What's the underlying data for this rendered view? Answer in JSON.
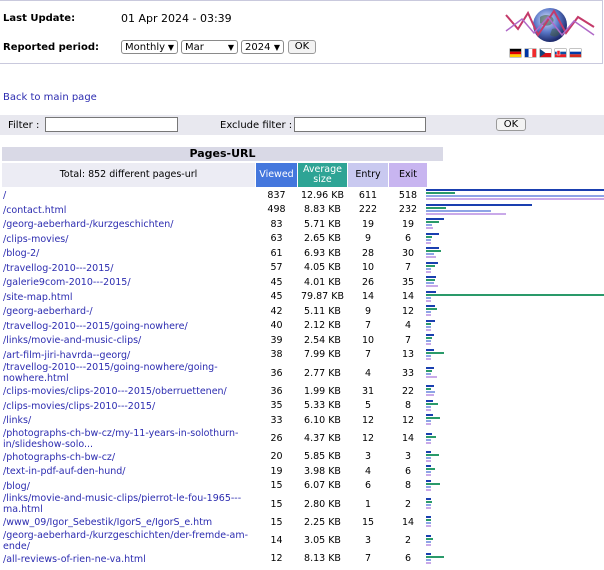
{
  "header": {
    "last_update_label": "Last Update:",
    "last_update_value": "01 Apr 2024 - 03:39",
    "reported_label": "Reported period:",
    "period_type": "Monthly",
    "month": "Mar",
    "year": "2024",
    "ok": "OK",
    "flags": [
      "de",
      "fr",
      "cz",
      "sk",
      "ru"
    ]
  },
  "nav": {
    "back": "Back to main page"
  },
  "filter": {
    "filter_label": "Filter :",
    "exclude_label": "Exclude filter :",
    "ok": "OK"
  },
  "table": {
    "title": "Pages-URL",
    "total_label": "Total: 852 different pages-url",
    "col_viewed": "Viewed",
    "col_size": "Average size",
    "col_entry": "Entry",
    "col_exit": "Exit",
    "colors": {
      "viewed": "#4477dd",
      "size": "#2ea495",
      "entry": "#c9c9f0",
      "exit": "#c8b5f0"
    },
    "max": {
      "viewed": 837,
      "size_kb": 79.87,
      "entry": 611,
      "exit": 518
    },
    "rows": [
      {
        "url": "/",
        "viewed": "837",
        "size": "12.96 KB",
        "size_kb": 12.96,
        "entry": "611",
        "exit": "518"
      },
      {
        "url": "/contact.html",
        "viewed": "498",
        "size": "8.83 KB",
        "size_kb": 8.83,
        "entry": "222",
        "exit": "232"
      },
      {
        "url": "/georg-aeberhard-/kurzgeschichten/",
        "viewed": "83",
        "size": "5.71 KB",
        "size_kb": 5.71,
        "entry": "19",
        "exit": "19"
      },
      {
        "url": "/clips-movies/",
        "viewed": "63",
        "size": "2.65 KB",
        "size_kb": 2.65,
        "entry": "9",
        "exit": "6"
      },
      {
        "url": "/blog-2/",
        "viewed": "61",
        "size": "6.93 KB",
        "size_kb": 6.93,
        "entry": "28",
        "exit": "30"
      },
      {
        "url": "/travellog-2010---2015/",
        "viewed": "57",
        "size": "4.05 KB",
        "size_kb": 4.05,
        "entry": "10",
        "exit": "7"
      },
      {
        "url": "/galerie9com-2010---2015/",
        "viewed": "45",
        "size": "4.01 KB",
        "size_kb": 4.01,
        "entry": "26",
        "exit": "35"
      },
      {
        "url": "/site-map.html",
        "viewed": "45",
        "size": "79.87 KB",
        "size_kb": 79.87,
        "entry": "14",
        "exit": "14"
      },
      {
        "url": "/georg-aeberhard-/",
        "viewed": "42",
        "size": "5.11 KB",
        "size_kb": 5.11,
        "entry": "9",
        "exit": "12"
      },
      {
        "url": "/travellog-2010---2015/going-nowhere/",
        "viewed": "40",
        "size": "2.12 KB",
        "size_kb": 2.12,
        "entry": "7",
        "exit": "4"
      },
      {
        "url": "/links/movie-and-music-clips/",
        "viewed": "39",
        "size": "2.54 KB",
        "size_kb": 2.54,
        "entry": "10",
        "exit": "7"
      },
      {
        "url": "/art-film-jiri-havrda--georg/",
        "viewed": "38",
        "size": "7.99 KB",
        "size_kb": 7.99,
        "entry": "7",
        "exit": "13"
      },
      {
        "url": "/travellog-2010---2015/going-nowhere/going-nowhere.html",
        "viewed": "36",
        "size": "2.77 KB",
        "size_kb": 2.77,
        "entry": "4",
        "exit": "33"
      },
      {
        "url": "/clips-movies/clips-2010---2015/oberruettenen/",
        "viewed": "36",
        "size": "1.99 KB",
        "size_kb": 1.99,
        "entry": "31",
        "exit": "22"
      },
      {
        "url": "/clips-movies/clips-2010---2015/",
        "viewed": "35",
        "size": "5.33 KB",
        "size_kb": 5.33,
        "entry": "5",
        "exit": "8"
      },
      {
        "url": "/links/",
        "viewed": "33",
        "size": "6.10 KB",
        "size_kb": 6.1,
        "entry": "12",
        "exit": "12"
      },
      {
        "url": "/photographs-ch-bw-cz/my-11-years-in-solothurn-in/slideshow-solo...",
        "viewed": "26",
        "size": "4.37 KB",
        "size_kb": 4.37,
        "entry": "12",
        "exit": "14"
      },
      {
        "url": "/photographs-ch-bw-cz/",
        "viewed": "20",
        "size": "5.85 KB",
        "size_kb": 5.85,
        "entry": "3",
        "exit": "3"
      },
      {
        "url": "/text-in-pdf-auf-den-hund/",
        "viewed": "19",
        "size": "3.98 KB",
        "size_kb": 3.98,
        "entry": "4",
        "exit": "6"
      },
      {
        "url": "/blog/",
        "viewed": "15",
        "size": "6.07 KB",
        "size_kb": 6.07,
        "entry": "6",
        "exit": "8"
      },
      {
        "url": "/links/movie-and-music-clips/pierrot-le-fou-1965---ma.html",
        "viewed": "15",
        "size": "2.80 KB",
        "size_kb": 2.8,
        "entry": "1",
        "exit": "2"
      },
      {
        "url": "/www_09/Igor_Sebestik/IgorS_e/IgorS_e.htm",
        "viewed": "15",
        "size": "2.25 KB",
        "size_kb": 2.25,
        "entry": "15",
        "exit": "14"
      },
      {
        "url": "/georg-aeberhard-/kurzgeschichten/der-fremde-am-ende/",
        "viewed": "14",
        "size": "3.05 KB",
        "size_kb": 3.05,
        "entry": "3",
        "exit": "2"
      },
      {
        "url": "/all-reviews-of-rien-ne-va.html",
        "viewed": "12",
        "size": "8.13 KB",
        "size_kb": 8.13,
        "entry": "7",
        "exit": "6"
      }
    ]
  }
}
